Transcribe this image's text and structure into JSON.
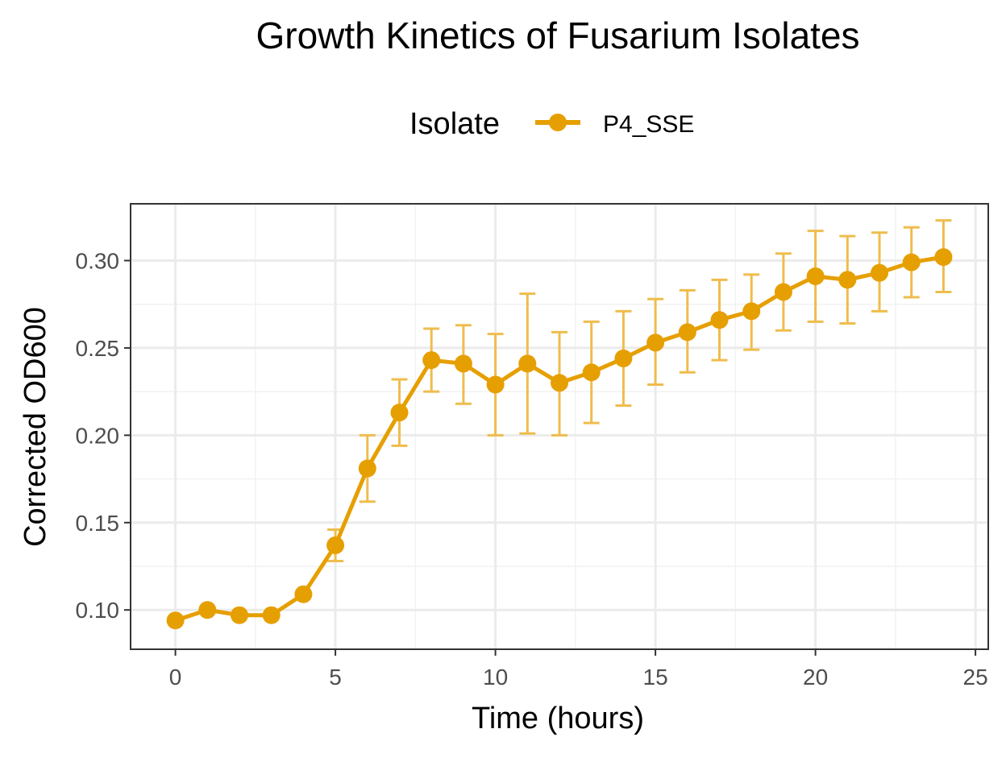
{
  "chart_data": {
    "type": "line",
    "title": "Growth Kinetics of Fusarium Isolates",
    "xlabel": "Time (hours)",
    "ylabel": "Corrected OD600",
    "xlim": [
      -1.4,
      25.4
    ],
    "ylim": [
      0.0775,
      0.3325
    ],
    "xticks": [
      0,
      5,
      10,
      15,
      20,
      25
    ],
    "xtick_labels": [
      "0",
      "5",
      "10",
      "15",
      "20",
      "25"
    ],
    "yticks": [
      0.1,
      0.15,
      0.2,
      0.25,
      0.3
    ],
    "ytick_labels": [
      "0.10",
      "0.15",
      "0.20",
      "0.25",
      "0.30"
    ],
    "grid": true,
    "legend": {
      "title": "Isolate",
      "position": "top"
    },
    "series": [
      {
        "name": "P4_SSE",
        "color": "#E69F00",
        "error_bar_color": "#EFBD4D",
        "x": [
          0,
          1,
          2,
          3,
          4,
          5,
          6,
          7,
          8,
          9,
          10,
          11,
          12,
          13,
          14,
          15,
          16,
          17,
          18,
          19,
          20,
          21,
          22,
          23,
          24
        ],
        "y": [
          0.094,
          0.1,
          0.097,
          0.097,
          0.109,
          0.137,
          0.181,
          0.213,
          0.243,
          0.241,
          0.229,
          0.241,
          0.23,
          0.236,
          0.244,
          0.253,
          0.259,
          0.266,
          0.271,
          0.282,
          0.291,
          0.289,
          0.293,
          0.299,
          0.302
        ],
        "error_low": [
          null,
          null,
          null,
          null,
          null,
          0.128,
          0.162,
          0.194,
          0.225,
          0.218,
          0.2,
          0.201,
          0.2,
          0.207,
          0.217,
          0.229,
          0.236,
          0.243,
          0.249,
          0.26,
          0.265,
          0.264,
          0.271,
          0.279,
          0.282
        ],
        "error_high": [
          null,
          null,
          null,
          null,
          null,
          0.146,
          0.2,
          0.232,
          0.261,
          0.263,
          0.258,
          0.281,
          0.259,
          0.265,
          0.271,
          0.278,
          0.283,
          0.289,
          0.292,
          0.304,
          0.317,
          0.314,
          0.316,
          0.319,
          0.323
        ]
      }
    ]
  }
}
